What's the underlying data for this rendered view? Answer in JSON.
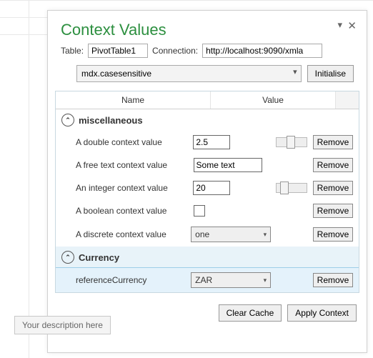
{
  "colors": {
    "title": "#2c8f3f",
    "panel_border": "#d0d0d0",
    "grid_border": "#c8d8e0",
    "row_selected_bg": "#e4f2fb",
    "row_selected_border": "#9ecde8",
    "button_bg": "#efefef"
  },
  "title": "Context Values",
  "window": {
    "pin_icon": "📌",
    "close_icon": "✕"
  },
  "table_label": "Table:",
  "table_value": "PivotTable1",
  "connection_label": "Connection:",
  "connection_value": "http://localhost:9090/xmla",
  "context_selector": "mdx.casesensitive",
  "init_button": "Initialise",
  "grid_headers": {
    "name": "Name",
    "value": "Value"
  },
  "groups": [
    {
      "key": "misc",
      "label": "miscellaneous",
      "selected": false,
      "rows": [
        {
          "name": "A double context value",
          "type": "number",
          "value": "2.5",
          "slider_pos": 0.45,
          "selected": false
        },
        {
          "name": "A free text context value",
          "type": "text",
          "value": "Some text",
          "selected": false
        },
        {
          "name": "An integer context value",
          "type": "number",
          "value": "20",
          "slider_pos": 0.15,
          "selected": false
        },
        {
          "name": "A boolean context value",
          "type": "bool",
          "value": false,
          "selected": false
        },
        {
          "name": "A discrete context value",
          "type": "dropdown",
          "value": "one",
          "selected": false
        }
      ]
    },
    {
      "key": "currency",
      "label": "Currency",
      "selected": true,
      "rows": [
        {
          "name": "referenceCurrency",
          "type": "dropdown",
          "value": "ZAR",
          "selected": true
        }
      ]
    }
  ],
  "remove_label": "Remove",
  "footer": {
    "clear_cache": "Clear Cache",
    "apply_context": "Apply Context"
  },
  "tooltip": "Your description here"
}
